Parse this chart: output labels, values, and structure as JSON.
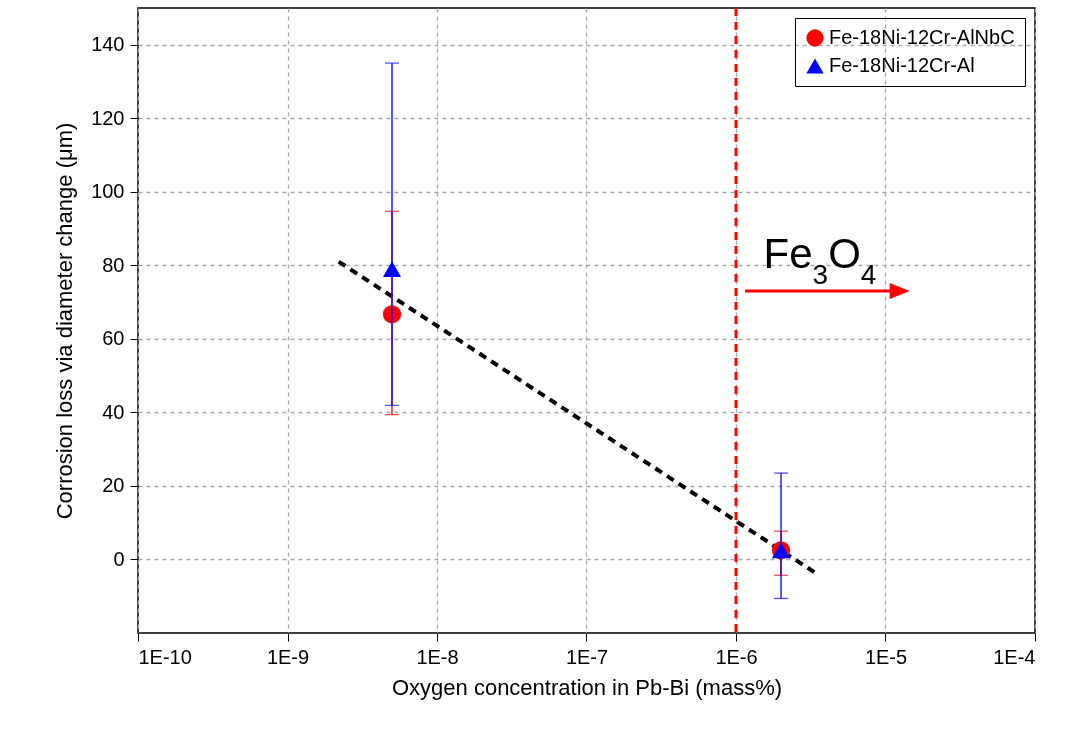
{
  "chart_data": {
    "type": "scatter",
    "xlabel": "Oxygen concentration in Pb-Bi (mass%)",
    "ylabel": "Corrosion loss via diameter change (μm)",
    "log": "x",
    "xlim": [
      1e-10,
      0.0001
    ],
    "xticks": [
      {
        "value": 1e-10,
        "label": "1E-10"
      },
      {
        "value": 1e-09,
        "label": "1E-9"
      },
      {
        "value": 1e-08,
        "label": "1E-8"
      },
      {
        "value": 1e-07,
        "label": "1E-7"
      },
      {
        "value": 1e-06,
        "label": "1E-6"
      },
      {
        "value": 1e-05,
        "label": "1E-5"
      },
      {
        "value": 0.0001,
        "label": "1E-4"
      }
    ],
    "ylim": [
      -20,
      150
    ],
    "yticks": [
      0,
      20,
      40,
      60,
      80,
      100,
      120,
      140
    ],
    "grid": true,
    "legend": "top right",
    "x": [
      5e-09,
      2e-06
    ],
    "series": [
      {
        "name": "Fe-18Ni-12Cr-AlNbC",
        "color": "#ff0000",
        "marker": "circle",
        "values": [
          66.7,
          2.5
        ],
        "errors": [
          [
            39.4,
            94.7
          ],
          [
            -4.3,
            7.7
          ]
        ]
      },
      {
        "name": "Fe-18Ni-12Cr-Al",
        "color": "#0000ff",
        "marker": "triangle",
        "values": [
          79,
          2.5
        ],
        "errors": [
          [
            41.9,
            135
          ],
          [
            -10.6,
            23.5
          ]
        ]
      },
      {
        "type": "line",
        "color": "#000000",
        "line_style": "dashed",
        "x": [
          2.2e-09,
          3.6e-06
        ],
        "values": [
          81,
          -4.3
        ]
      }
    ],
    "ref_lines": [
      {
        "axis": "x",
        "value": 1e-06,
        "color": "#ff0000",
        "line_style": "dashed"
      }
    ],
    "annotations": [
      {
        "text": "Fe$_{3}$O$_{4}$",
        "x": 1e-06,
        "y": 73
      }
    ]
  }
}
